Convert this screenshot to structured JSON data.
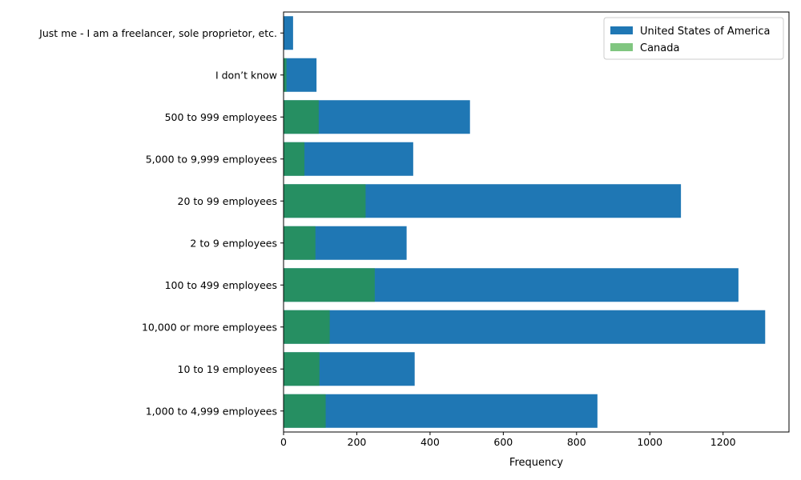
{
  "chart_data": {
    "type": "bar",
    "orientation": "horizontal",
    "stacking": "overlay",
    "categories": [
      "1,000 to 4,999 employees",
      "10 to 19 employees",
      "10,000 or more employees",
      "100 to 499 employees",
      "2 to 9 employees",
      "20 to 99 employees",
      "5,000 to 9,999 employees",
      "500 to 999 employees",
      "I don’t know",
      "Just me - I am a freelancer, sole proprietor, etc."
    ],
    "series": [
      {
        "name": "United States of America",
        "color": "#1f77b4",
        "values": [
          857,
          358,
          1315,
          1242,
          336,
          1085,
          354,
          509,
          90,
          26
        ]
      },
      {
        "name": "Canada",
        "color": "#2ca02c",
        "opacity": 0.6,
        "values": [
          115,
          98,
          126,
          249,
          87,
          224,
          57,
          96,
          8,
          0
        ]
      }
    ],
    "xlabel": "Frequency",
    "ylabel": "",
    "title": "",
    "xlim": [
      0,
      1380
    ],
    "xticks": [
      0,
      200,
      400,
      600,
      800,
      1000,
      1200
    ],
    "grid": false,
    "legend_position": "top-right"
  }
}
